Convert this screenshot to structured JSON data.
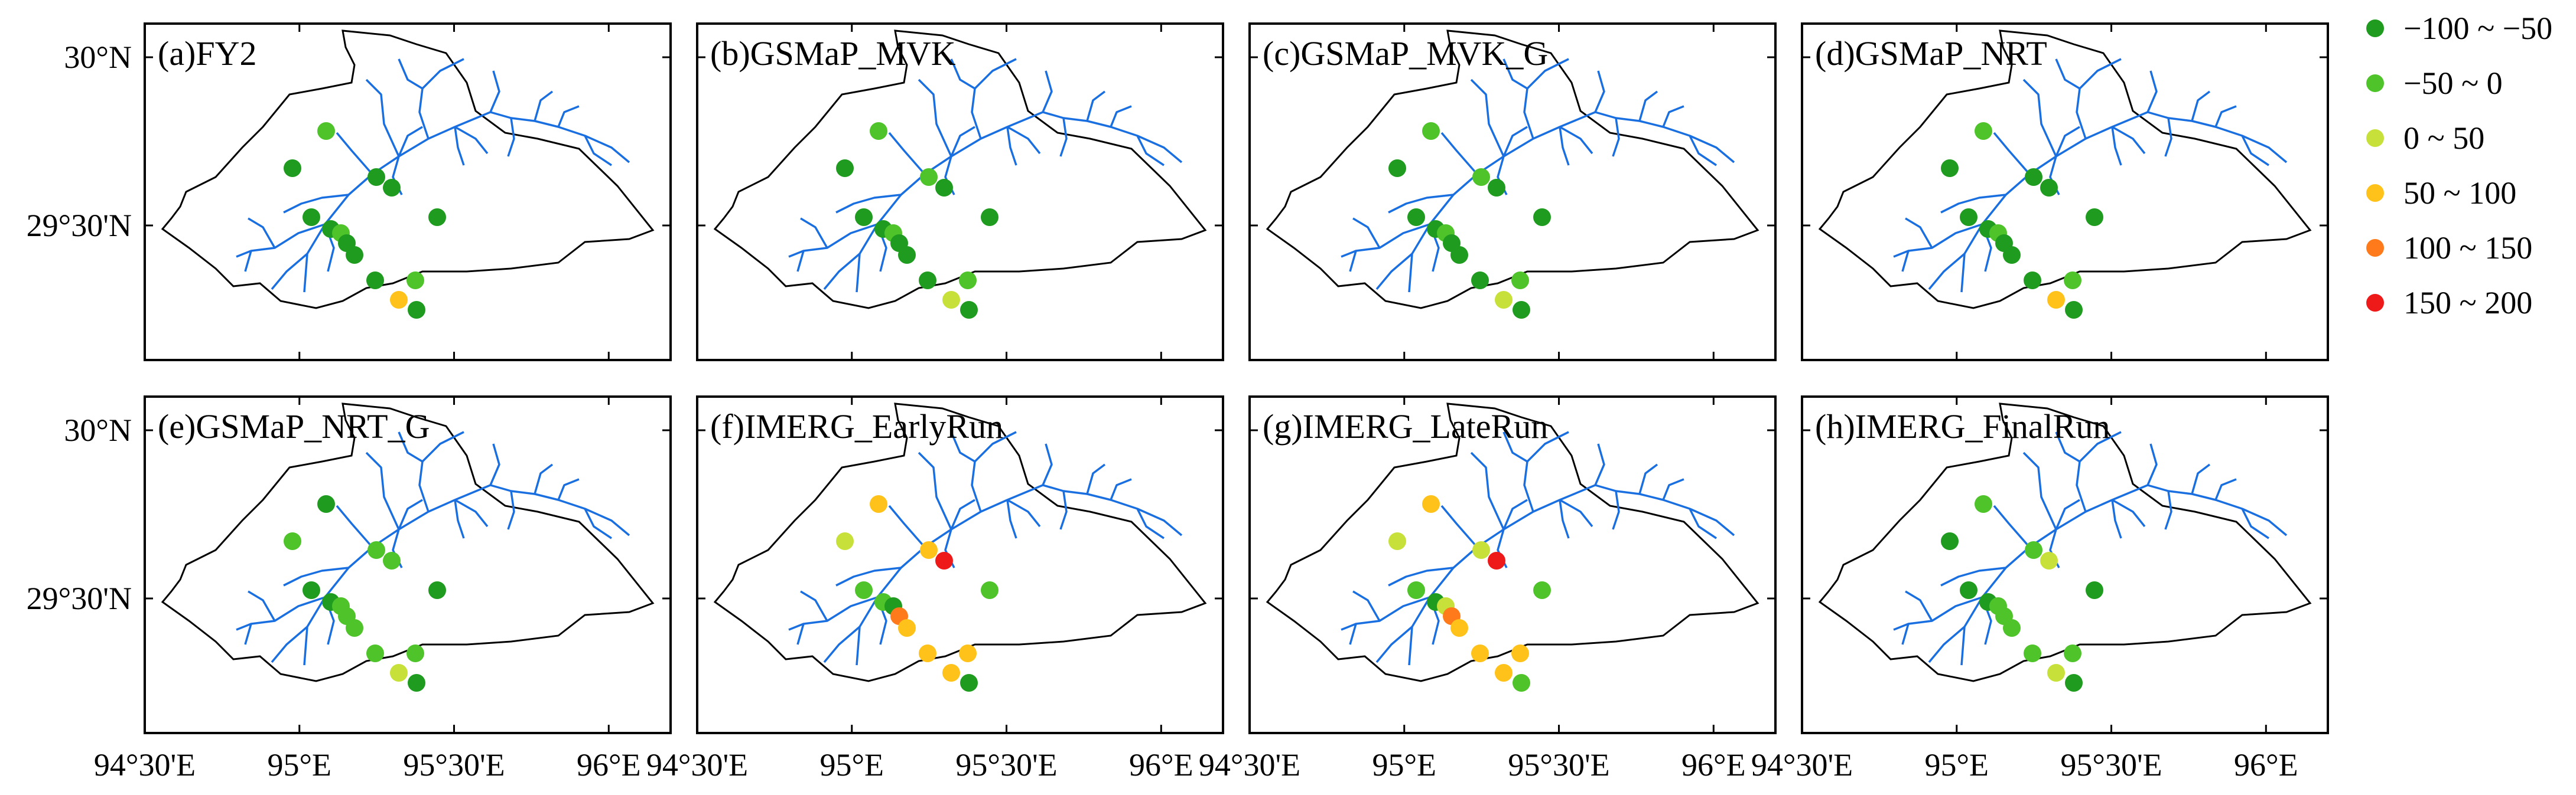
{
  "figure": {
    "x_ticks": [
      "94°30'E",
      "95°E",
      "95°30'E",
      "96°E"
    ],
    "y_ticks": [
      "30°N",
      "29°30'N"
    ],
    "panels": [
      {
        "label": "(a)FY2"
      },
      {
        "label": "(b)GSMaP_MVK"
      },
      {
        "label": "(c)GSMaP_MVK_G"
      },
      {
        "label": "(d)GSMaP_NRT"
      },
      {
        "label": "(e)GSMaP_NRT_G"
      },
      {
        "label": "(f)IMERG_EarlyRun"
      },
      {
        "label": "(g)IMERG_LateRun"
      },
      {
        "label": "(h)IMERG_FinalRun"
      }
    ]
  },
  "legend": {
    "classes": [
      {
        "label": "−100 ~ −50",
        "color": "#1f9b1f"
      },
      {
        "label": "−50 ~ 0",
        "color": "#4fc32a"
      },
      {
        "label": "0 ~ 50",
        "color": "#c8e03a"
      },
      {
        "label": "50 ~ 100",
        "color": "#ffc21a"
      },
      {
        "label": "100 ~ 150",
        "color": "#ff7a1a"
      },
      {
        "label": "150 ~ 200",
        "color": "#ee1a1a"
      }
    ]
  },
  "map_data": {
    "lon_range": [
      94.5,
      96.2
    ],
    "lat_range": [
      29.1,
      30.1
    ],
    "station_classes": [
      [
        0,
        1,
        0,
        0,
        0,
        0,
        1,
        0,
        0,
        0,
        1,
        3,
        0,
        0
      ],
      [
        0,
        1,
        1,
        0,
        0,
        0,
        1,
        0,
        0,
        0,
        1,
        2,
        0,
        0
      ],
      [
        0,
        1,
        1,
        0,
        0,
        0,
        1,
        0,
        0,
        0,
        1,
        2,
        0,
        0
      ],
      [
        0,
        1,
        0,
        0,
        0,
        0,
        1,
        0,
        0,
        0,
        1,
        3,
        0,
        0
      ],
      [
        1,
        0,
        1,
        1,
        0,
        0,
        1,
        1,
        1,
        1,
        1,
        2,
        0,
        0
      ],
      [
        2,
        3,
        3,
        5,
        1,
        1,
        0,
        4,
        3,
        3,
        3,
        3,
        1,
        0
      ],
      [
        2,
        3,
        2,
        5,
        1,
        0,
        2,
        4,
        3,
        3,
        3,
        3,
        1,
        1
      ],
      [
        0,
        1,
        1,
        2,
        0,
        0,
        1,
        1,
        1,
        1,
        1,
        2,
        0,
        0
      ]
    ]
  }
}
